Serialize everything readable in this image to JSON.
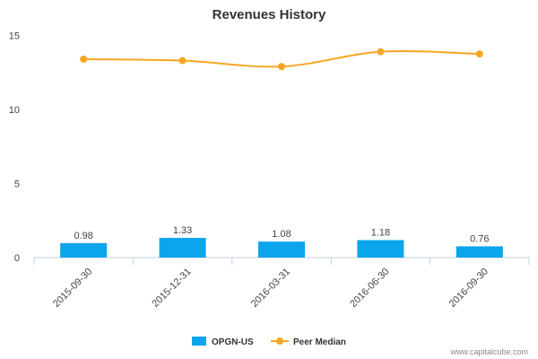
{
  "chart_data": {
    "type": "bar",
    "title": "Revenues History",
    "categories": [
      "2015-09-30",
      "2015-12-31",
      "2016-03-31",
      "2016-06-30",
      "2016-09-30"
    ],
    "series": [
      {
        "name": "OPGN-US",
        "type": "bar",
        "color": "#0ba5ec",
        "values": [
          0.98,
          1.33,
          1.08,
          1.18,
          0.76
        ]
      },
      {
        "name": "Peer Median",
        "type": "line",
        "color": "#f5a623",
        "values": [
          13.4,
          13.3,
          12.9,
          13.9,
          13.75
        ]
      }
    ],
    "data_labels": [
      "0.98",
      "1.33",
      "1.08",
      "1.18",
      "0.76"
    ],
    "y_ticks": [
      "0",
      "5",
      "10",
      "15"
    ],
    "ylim": [
      0,
      16
    ],
    "legend_position": "bottom",
    "grid": false
  },
  "credit": "www.capitalcube.com"
}
